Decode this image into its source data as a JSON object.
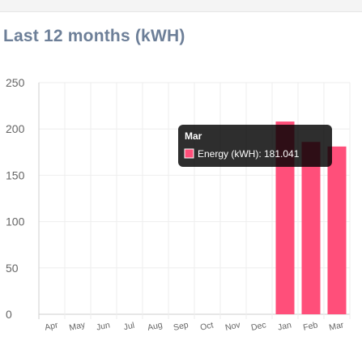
{
  "header": {
    "title": "Last 12 months (kWH)"
  },
  "chart_data": {
    "type": "bar",
    "categories": [
      "Apr",
      "May",
      "Jun",
      "Jul",
      "Aug",
      "Sep",
      "Oct",
      "Nov",
      "Dec",
      "Jan",
      "Feb",
      "Mar"
    ],
    "series": [
      {
        "name": "Energy (kWH)",
        "values": [
          0,
          0,
          0,
          0,
          0,
          0,
          0,
          0,
          0,
          208,
          186,
          181.041
        ],
        "color": "#ff4f7a"
      }
    ],
    "ylim": [
      0,
      250
    ],
    "yticks": [
      0,
      50,
      100,
      150,
      200,
      250
    ],
    "grid": true,
    "tooltip": {
      "title": "Mar",
      "label": "Energy (kWH): 181.041"
    }
  }
}
